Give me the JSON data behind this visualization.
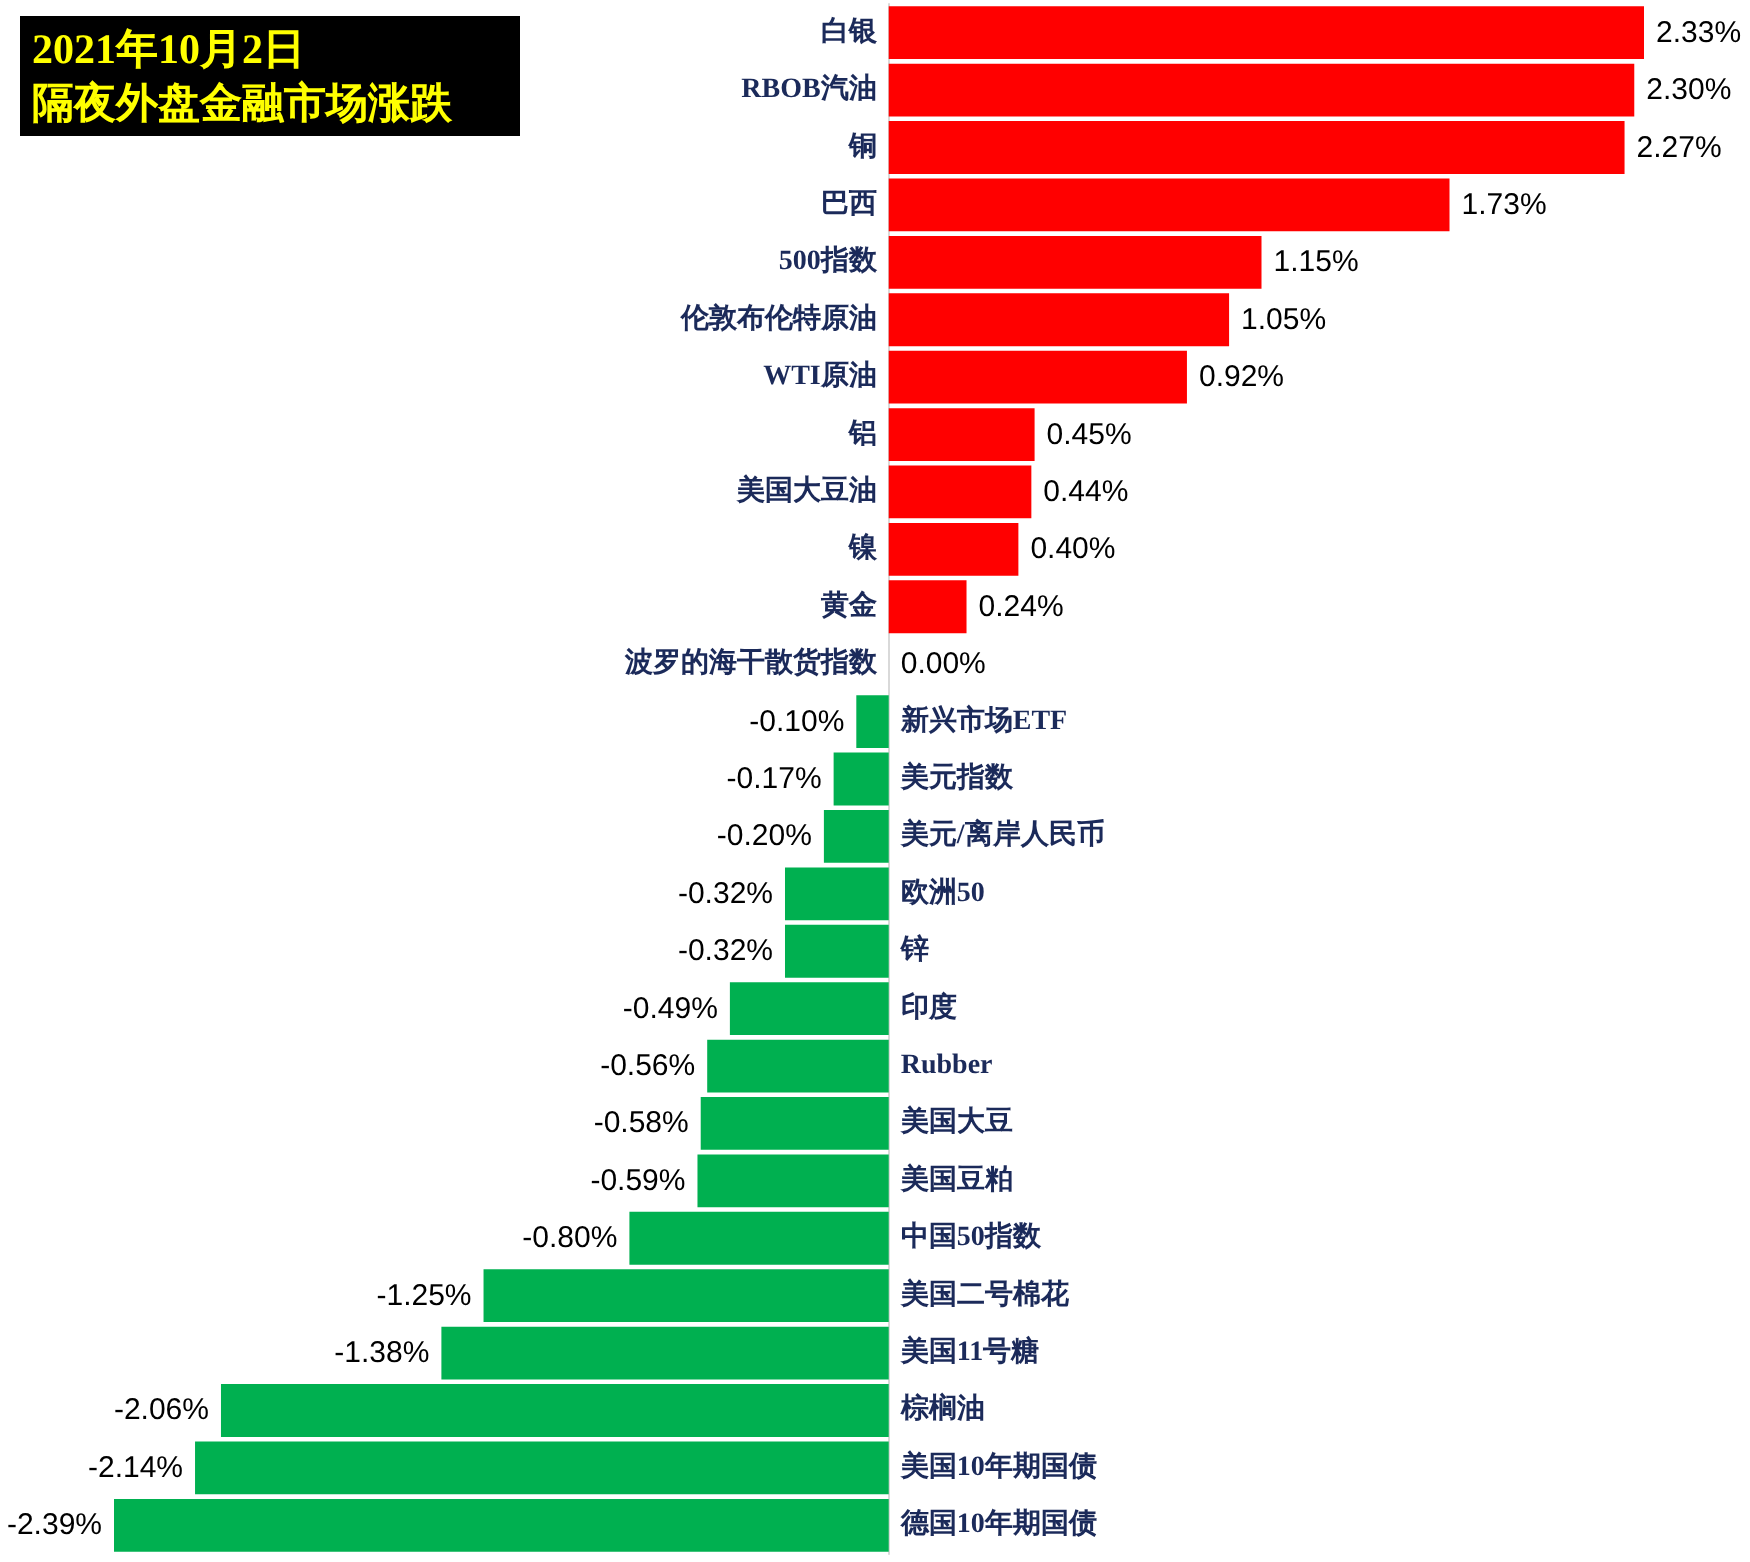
{
  "chart_data": {
    "type": "bar",
    "orientation": "horizontal",
    "title": "2021年10月2日",
    "subtitle": "隔夜外盘金融市场涨跌",
    "categories": [
      "白银",
      "RBOB汽油",
      "铜",
      "巴西",
      "500指数",
      "伦敦布伦特原油",
      "WTI原油",
      "铝",
      "美国大豆油",
      "镍",
      "黄金",
      "波罗的海干散货指数",
      "新兴市场ETF",
      "美元指数",
      "美元/离岸人民币",
      "欧洲50",
      "锌",
      "印度",
      "Rubber",
      "美国大豆",
      "美国豆粕",
      "中国50指数",
      "美国二号棉花",
      "美国11号糖",
      "棕榈油",
      "美国10年期国债",
      "德国10年期国债"
    ],
    "values": [
      2.33,
      2.3,
      2.27,
      1.73,
      1.15,
      1.05,
      0.92,
      0.45,
      0.44,
      0.4,
      0.24,
      0.0,
      -0.1,
      -0.17,
      -0.2,
      -0.32,
      -0.32,
      -0.49,
      -0.56,
      -0.58,
      -0.59,
      -0.8,
      -1.25,
      -1.38,
      -2.06,
      -2.14,
      -2.39
    ],
    "value_labels": [
      "2.33%",
      "2.30%",
      "2.27%",
      "1.73%",
      "1.15%",
      "1.05%",
      "0.92%",
      "0.45%",
      "0.44%",
      "0.40%",
      "0.24%",
      "0.00%",
      "-0.10%",
      "-0.17%",
      "-0.20%",
      "-0.32%",
      "-0.32%",
      "-0.49%",
      "-0.56%",
      "-0.58%",
      "-0.59%",
      "-0.80%",
      "-1.25%",
      "-1.38%",
      "-2.06%",
      "-2.14%",
      "-2.39%"
    ],
    "colors": [
      "#ff0000",
      "#ff0000",
      "#ff0000",
      "#ff0000",
      "#ff0000",
      "#ff0000",
      "#ff0000",
      "#ff0000",
      "#ff0000",
      "#ff0000",
      "#ff0000",
      "#ff0000",
      "#00b050",
      "#00b050",
      "#00b050",
      "#00b050",
      "#00b050",
      "#00b050",
      "#00b050",
      "#00b050",
      "#00b050",
      "#00b050",
      "#00b050",
      "#00b050",
      "#00b050",
      "#00b050",
      "#00b050"
    ],
    "tick_labels": "y"
  }
}
